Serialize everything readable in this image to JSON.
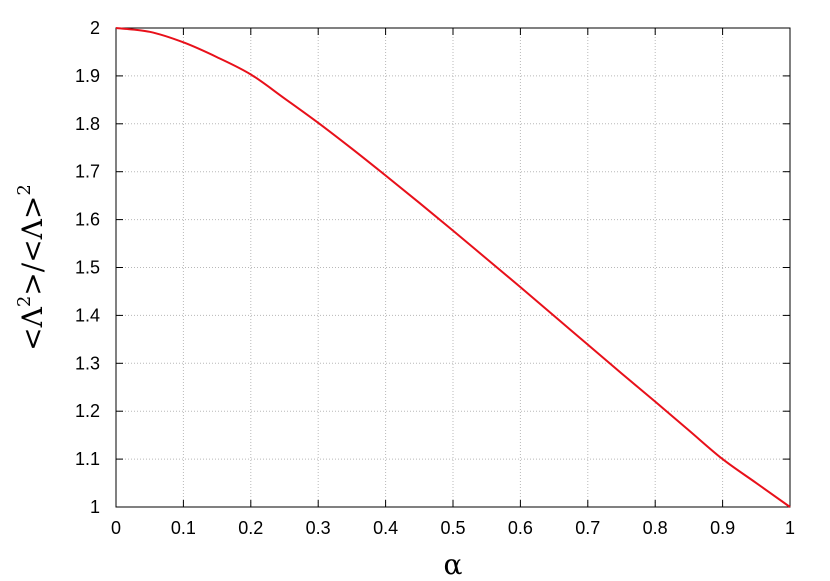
{
  "chart_data": {
    "type": "line",
    "xlabel": "α",
    "ylabel_parts": {
      "open1": "<",
      "lambda1": "Λ",
      "sup1": "2",
      "close1": ">",
      "slash": "/",
      "open2": "<",
      "lambda2": "Λ",
      "close2": ">",
      "sup2": "2"
    },
    "xlim": [
      0,
      1
    ],
    "ylim": [
      1,
      2
    ],
    "grid": true,
    "x_ticks": [
      "0",
      "0.1",
      "0.2",
      "0.3",
      "0.4",
      "0.5",
      "0.6",
      "0.7",
      "0.8",
      "0.9",
      "1"
    ],
    "y_ticks": [
      "1",
      "1.1",
      "1.2",
      "1.3",
      "1.4",
      "1.5",
      "1.6",
      "1.7",
      "1.8",
      "1.9",
      "2"
    ],
    "series": [
      {
        "color": "#e8101a",
        "x": [
          0,
          0.05,
          0.1,
          0.15,
          0.2,
          0.25,
          0.3,
          0.35,
          0.4,
          0.45,
          0.5,
          0.55,
          0.6,
          0.65,
          0.7,
          0.75,
          0.8,
          0.85,
          0.9,
          0.95,
          1.0
        ],
        "y": [
          2.0,
          1.992,
          1.97,
          1.939,
          1.903,
          1.853,
          1.802,
          1.748,
          1.692,
          1.635,
          1.577,
          1.518,
          1.459,
          1.399,
          1.339,
          1.279,
          1.22,
          1.16,
          1.1,
          1.05,
          1.0
        ]
      }
    ]
  }
}
